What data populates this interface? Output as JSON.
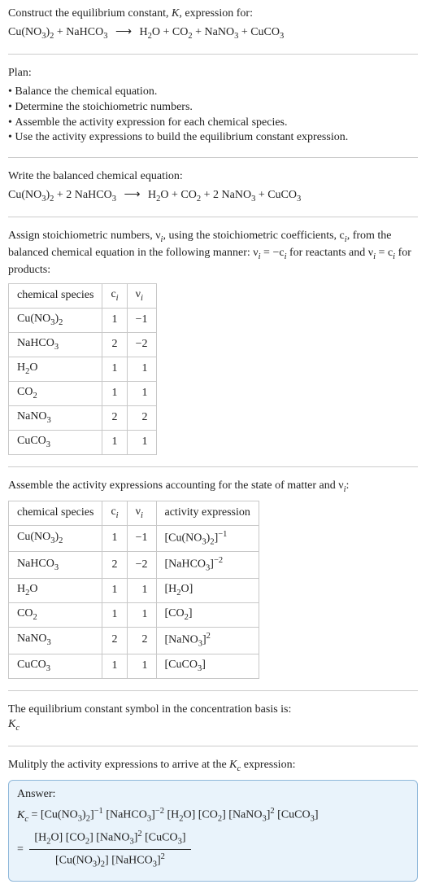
{
  "intro": {
    "line1_pre": "Construct the equilibrium constant, ",
    "line1_K": "K",
    "line1_post": ", expression for:",
    "eq_lhs_html": "Cu(NO<sub>3</sub>)<sub>2</sub> + NaHCO<sub>3</sub>",
    "eq_rhs_html": "H<sub>2</sub>O + CO<sub>2</sub> + NaNO<sub>3</sub> + CuCO<sub>3</sub>"
  },
  "plan": {
    "heading": "Plan:",
    "items": [
      "Balance the chemical equation.",
      "Determine the stoichiometric numbers.",
      "Assemble the activity expression for each chemical species.",
      "Use the activity expressions to build the equilibrium constant expression."
    ]
  },
  "balanced": {
    "heading": "Write the balanced chemical equation:",
    "lhs_html": "Cu(NO<sub>3</sub>)<sub>2</sub> + 2 NaHCO<sub>3</sub>",
    "rhs_html": "H<sub>2</sub>O + CO<sub>2</sub> + 2 NaNO<sub>3</sub> + CuCO<sub>3</sub>"
  },
  "stoich_text": {
    "pre": "Assign stoichiometric numbers, ",
    "nu_i_html": "ν<sub><i>i</i></sub>",
    "mid1": ", using the stoichiometric coefficients, ",
    "c_i_html": "c<sub><i>i</i></sub>",
    "mid2": ", from the balanced chemical equation in the following manner: ",
    "rule1_html": "ν<sub><i>i</i></sub> = −c<sub><i>i</i></sub>",
    "mid3": " for reactants and ",
    "rule2_html": "ν<sub><i>i</i></sub> = c<sub><i>i</i></sub>",
    "post": " for products:"
  },
  "stoich_table": {
    "headers": [
      "chemical species",
      "c<sub><i>i</i></sub>",
      "ν<sub><i>i</i></sub>"
    ],
    "rows": [
      [
        "Cu(NO<sub>3</sub>)<sub>2</sub>",
        "1",
        "−1"
      ],
      [
        "NaHCO<sub>3</sub>",
        "2",
        "−2"
      ],
      [
        "H<sub>2</sub>O",
        "1",
        "1"
      ],
      [
        "CO<sub>2</sub>",
        "1",
        "1"
      ],
      [
        "NaNO<sub>3</sub>",
        "2",
        "2"
      ],
      [
        "CuCO<sub>3</sub>",
        "1",
        "1"
      ]
    ],
    "font_size": 14,
    "border_color": "#c8c8c8"
  },
  "activity_text_html": "Assemble the activity expressions accounting for the state of matter and ν<sub><i>i</i></sub>:",
  "activity_table": {
    "headers": [
      "chemical species",
      "c<sub><i>i</i></sub>",
      "ν<sub><i>i</i></sub>",
      "activity expression"
    ],
    "rows": [
      [
        "Cu(NO<sub>3</sub>)<sub>2</sub>",
        "1",
        "−1",
        "[Cu(NO<sub>3</sub>)<sub>2</sub>]<sup>−1</sup>"
      ],
      [
        "NaHCO<sub>3</sub>",
        "2",
        "−2",
        "[NaHCO<sub>3</sub>]<sup>−2</sup>"
      ],
      [
        "H<sub>2</sub>O",
        "1",
        "1",
        "[H<sub>2</sub>O]"
      ],
      [
        "CO<sub>2</sub>",
        "1",
        "1",
        "[CO<sub>2</sub>]"
      ],
      [
        "NaNO<sub>3</sub>",
        "2",
        "2",
        "[NaNO<sub>3</sub>]<sup>2</sup>"
      ],
      [
        "CuCO<sub>3</sub>",
        "1",
        "1",
        "[CuCO<sub>3</sub>]"
      ]
    ]
  },
  "kc_text": {
    "line1": "The equilibrium constant symbol in the concentration basis is:",
    "kc_html": "<span class='ital'>K<sub>c</sub></span>"
  },
  "mult_text_html": "Mulitply the activity expressions to arrive at the <span class='ital'>K<sub>c</sub></span> expression:",
  "answer": {
    "label": "Answer:",
    "line1_html": "<span class='ital'>K<sub>c</sub></span> = [Cu(NO<sub>3</sub>)<sub>2</sub>]<sup>−1</sup> [NaHCO<sub>3</sub>]<sup>−2</sup> [H<sub>2</sub>O] [CO<sub>2</sub>] [NaNO<sub>3</sub>]<sup>2</sup> [CuCO<sub>3</sub>]",
    "frac_num_html": "[H<sub>2</sub>O] [CO<sub>2</sub>] [NaNO<sub>3</sub>]<sup>2</sup> [CuCO<sub>3</sub>]",
    "frac_den_html": "[Cu(NO<sub>3</sub>)<sub>2</sub>] [NaHCO<sub>3</sub>]<sup>2</sup>",
    "bg_color": "#e9f3fb",
    "border_color": "#8fb8da"
  },
  "arrow_glyph": "⟶"
}
